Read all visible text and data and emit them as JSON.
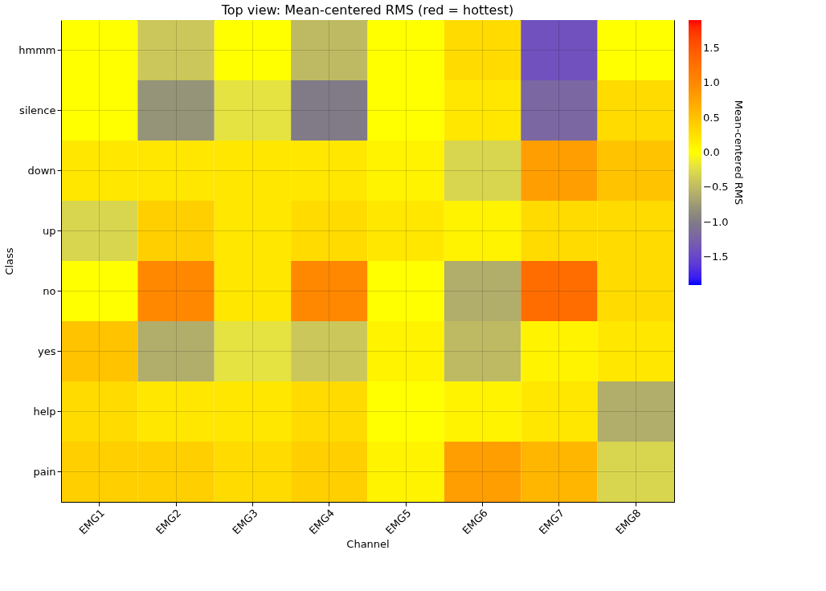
{
  "chart_data": {
    "type": "heatmap",
    "title": "Top view: Mean-centered RMS (red = hottest)",
    "xlabel": "Channel",
    "ylabel": "Class",
    "clabel": "Mean-centered RMS",
    "categories": [
      "EMG1",
      "EMG2",
      "EMG3",
      "EMG4",
      "EMG5",
      "EMG6",
      "EMG7",
      "EMG8"
    ],
    "y_categories": [
      "hmmm",
      "silence",
      "down",
      "up",
      "no",
      "yes",
      "help",
      "pain"
    ],
    "cells": [
      [
        0,
        -0.4,
        0,
        -0.5,
        0,
        0.3,
        -1.4,
        0
      ],
      [
        0,
        -0.8,
        -0.2,
        -1.0,
        0,
        0.2,
        -1.2,
        0.3
      ],
      [
        0.2,
        0.2,
        0.2,
        0.2,
        0.1,
        -0.3,
        0.8,
        0.5
      ],
      [
        -0.3,
        0.4,
        0.2,
        0.3,
        0.2,
        0.1,
        0.3,
        0.3
      ],
      [
        0,
        1.0,
        0.2,
        1.0,
        0,
        -0.6,
        1.3,
        0.3
      ],
      [
        0.5,
        -0.6,
        -0.2,
        -0.4,
        0.1,
        -0.5,
        0.1,
        0.2
      ],
      [
        0.3,
        0.2,
        0.2,
        0.3,
        0,
        0.1,
        0.2,
        -0.6
      ],
      [
        0.4,
        0.4,
        0.3,
        0.4,
        0.1,
        0.8,
        0.6,
        -0.3
      ]
    ],
    "clim": [
      -1.9,
      1.9
    ],
    "cticks": [
      {
        "value": -1.5,
        "label": "−1.5"
      },
      {
        "value": -1,
        "label": "−1.0"
      },
      {
        "value": -0.5,
        "label": "−0.5"
      },
      {
        "value": 0,
        "label": "0.0"
      },
      {
        "value": 0.5,
        "label": "0.5"
      },
      {
        "value": 1,
        "label": "1.0"
      },
      {
        "value": 1.5,
        "label": "1.5"
      }
    ],
    "grid": true
  }
}
